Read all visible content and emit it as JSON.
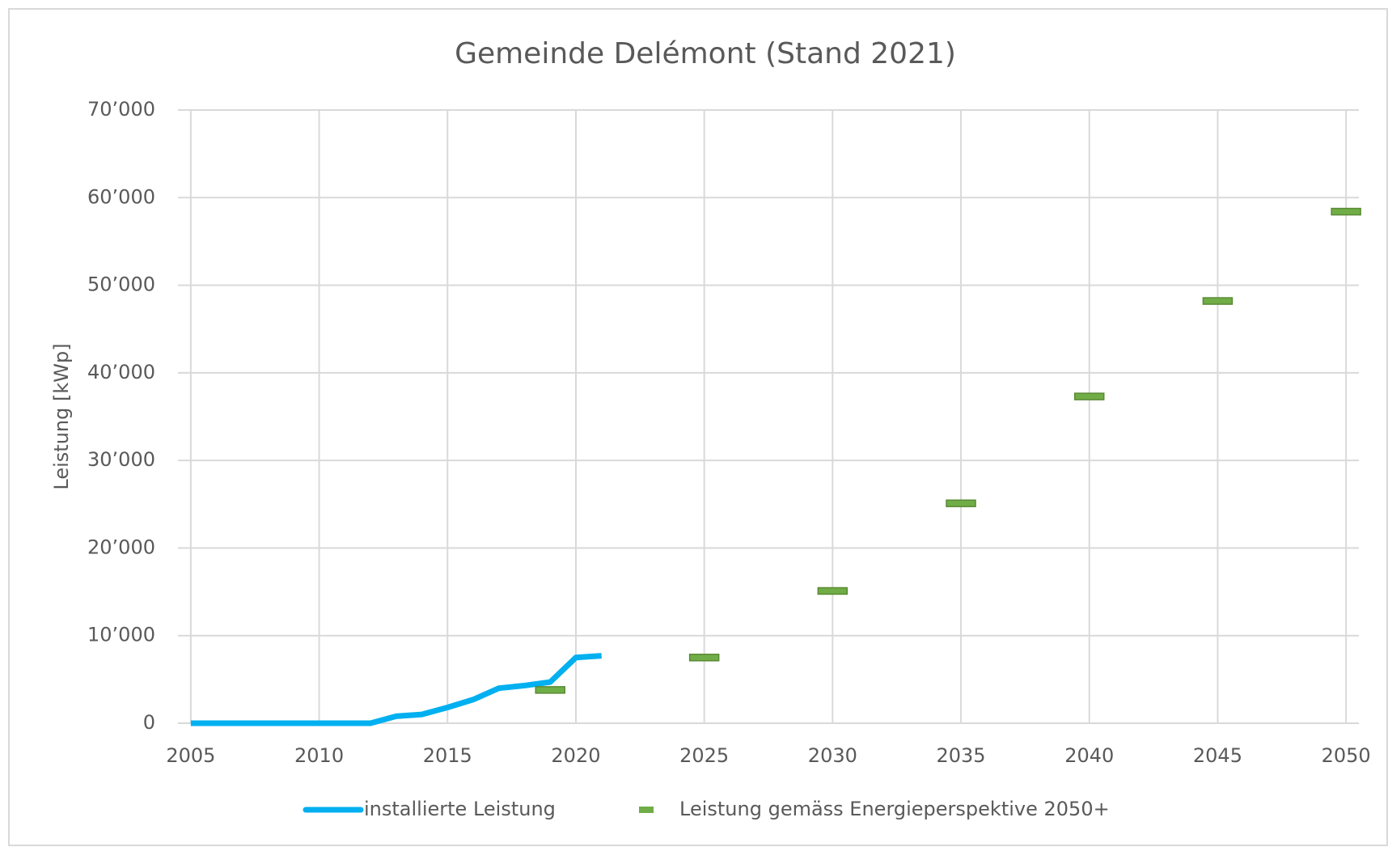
{
  "chart_data": {
    "type": "line",
    "title": "Gemeinde Delémont (Stand 2021)",
    "y_label": "Leistung [kWp]",
    "xlim": [
      2004.5,
      2050.5
    ],
    "xticks": [
      2005,
      2010,
      2015,
      2020,
      2025,
      2030,
      2035,
      2040,
      2045,
      2050
    ],
    "ylim": [
      0,
      70000
    ],
    "yticks": [
      0,
      {
        "value": 10000,
        "label": "10’000"
      },
      {
        "value": 20000,
        "label": "20’000"
      },
      {
        "value": 30000,
        "label": "30’000"
      },
      {
        "value": 40000,
        "label": "40’000"
      },
      {
        "value": 50000,
        "label": "50’000"
      },
      {
        "value": 60000,
        "label": "60’000"
      },
      {
        "value": 70000,
        "label": "70’000"
      }
    ],
    "grid": true,
    "legend": "bottom",
    "series": [
      {
        "name": "installierte Leistung",
        "color": "#00b0f0",
        "style": "line",
        "x": [
          2005,
          2006,
          2007,
          2008,
          2009,
          2010,
          2011,
          2012,
          2013,
          2014,
          2015,
          2016,
          2017,
          2018,
          2019,
          2020,
          2021
        ],
        "values": [
          0,
          0,
          0,
          0,
          0,
          0,
          0,
          0,
          800,
          1000,
          1800,
          2700,
          4000,
          4300,
          4700,
          7500,
          7700
        ]
      },
      {
        "name": "Leistung gemäss Energieperspektive 2050+",
        "color": "#70ad47",
        "style": "dash",
        "x": [
          2019,
          2025,
          2030,
          2035,
          2040,
          2045,
          2050
        ],
        "values": [
          3800,
          7500,
          15100,
          25100,
          37300,
          48200,
          58400
        ]
      }
    ]
  }
}
